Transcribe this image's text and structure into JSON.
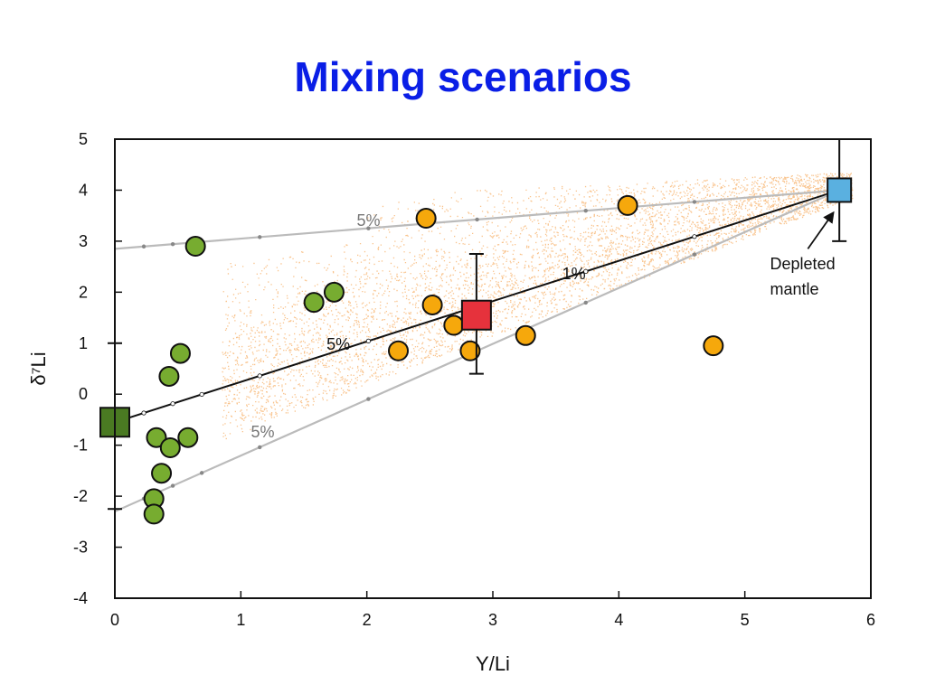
{
  "title": "Mixing scenarios",
  "chart_data": {
    "type": "scatter",
    "title": "Mixing scenarios",
    "xlabel": "Y/Li",
    "ylabel": "δ⁷Li",
    "xlim": [
      0,
      6
    ],
    "ylim": [
      -4,
      5
    ],
    "x_ticks": [
      0,
      1,
      2,
      3,
      4,
      5,
      6
    ],
    "y_ticks": [
      -4,
      -3,
      -2,
      -1,
      0,
      1,
      2,
      3,
      4,
      5
    ],
    "grid": false,
    "legend": "none",
    "colors": {
      "green": "#77ac30",
      "orange": "#f6a80c",
      "cloud": "#f8b878",
      "red_square": "#e6323c",
      "blue_square": "#5ab0e0",
      "green_square": "#4a7a22",
      "gray_line": "#bbbbbb",
      "black_line": "#111111"
    },
    "series": [
      {
        "marker": "circle",
        "color": "green",
        "points": [
          [
            0.64,
            2.9
          ],
          [
            1.58,
            1.8
          ],
          [
            1.74,
            2.0
          ],
          [
            0.52,
            0.8
          ],
          [
            0.43,
            0.35
          ],
          [
            0.33,
            -0.85
          ],
          [
            0.44,
            -1.05
          ],
          [
            0.58,
            -0.85
          ],
          [
            0.37,
            -1.55
          ],
          [
            0.31,
            -2.05
          ],
          [
            0.31,
            -2.35
          ]
        ]
      },
      {
        "marker": "circle",
        "color": "orange",
        "points": [
          [
            2.47,
            3.45
          ],
          [
            4.07,
            3.7
          ],
          [
            2.52,
            1.75
          ],
          [
            2.69,
            1.35
          ],
          [
            2.25,
            0.85
          ],
          [
            2.82,
            0.85
          ],
          [
            3.26,
            1.15
          ],
          [
            4.75,
            0.95
          ]
        ]
      }
    ],
    "endmembers": [
      {
        "marker": "square",
        "color": "green_square",
        "x": 0.0,
        "y": -0.55
      },
      {
        "marker": "square",
        "color": "red_square",
        "x": 2.87,
        "y": 1.55,
        "y_err": [
          0.4,
          2.75
        ]
      },
      {
        "marker": "square",
        "color": "blue_square",
        "x": 5.75,
        "y": 4.0,
        "y_err": [
          3.0,
          5.0
        ]
      }
    ],
    "mixing_lines": [
      {
        "color": "gray_line",
        "from": [
          0.0,
          2.85
        ],
        "to": [
          5.75,
          4.0
        ],
        "label": "5%",
        "label_at": [
          1.92,
          3.3
        ]
      },
      {
        "color": "black_line",
        "from": [
          0.0,
          -0.55
        ],
        "to": [
          5.75,
          4.0
        ],
        "label": "1%",
        "label_at": [
          3.55,
          2.25
        ]
      },
      {
        "color": "black_line",
        "label": "5%",
        "label_at": [
          1.68,
          0.87
        ]
      },
      {
        "color": "gray_line",
        "from": [
          0.0,
          -2.3
        ],
        "to": [
          5.75,
          4.0
        ],
        "label": "5%",
        "label_at": [
          1.08,
          -0.85
        ]
      }
    ],
    "left_markers": [
      1.0,
      -2.25
    ],
    "annotations": [
      {
        "text": "Depleted",
        "at": [
          5.2,
          2.45
        ]
      },
      {
        "text": "mantle",
        "at": [
          5.2,
          1.95
        ]
      }
    ]
  }
}
